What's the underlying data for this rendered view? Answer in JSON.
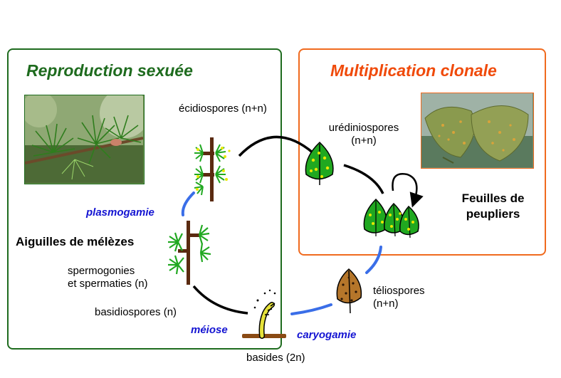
{
  "panels": {
    "sexual": {
      "title": "Reproduction sexuée",
      "title_color": "#1e6b1e",
      "border_color": "#1e6b1e"
    },
    "clonal": {
      "title": "Multiplication clonale",
      "title_color": "#f04a0a",
      "border_color": "#f06a1e"
    }
  },
  "labels": {
    "ecidiospores": "écidiospores (n+n)",
    "urediniospores_line1": "urédiniospores",
    "urediniospores_line2": "(n+n)",
    "feuilles_line1": "Feuilles de",
    "feuilles_line2": "peupliers",
    "aiguilles": "Aiguilles de mélèzes",
    "spermogonies_line1": "spermogonies",
    "spermogonies_line2": "et spermaties (n)",
    "basidiospores": "basidiospores (n)",
    "teliospores_line1": "téliospores",
    "teliospores_line2": "(n+n)",
    "basides": "basides (2n)"
  },
  "processes": {
    "plasmogamie": "plasmogamie",
    "meiose": "méiose",
    "caryogamie": "caryogamie"
  },
  "images": {
    "larch_photo": "larch-branch-photo",
    "poplar_photo": "poplar-leaves-photo"
  },
  "colors": {
    "arrow_black": "#000000",
    "arrow_blue": "#3a6ee8",
    "leaf_green": "#1fa81f",
    "spot_yellow": "#e8e800",
    "telio_brown": "#b5762a",
    "branch_brown": "#5a2a10",
    "basidium_yellow": "#e6e23a"
  }
}
